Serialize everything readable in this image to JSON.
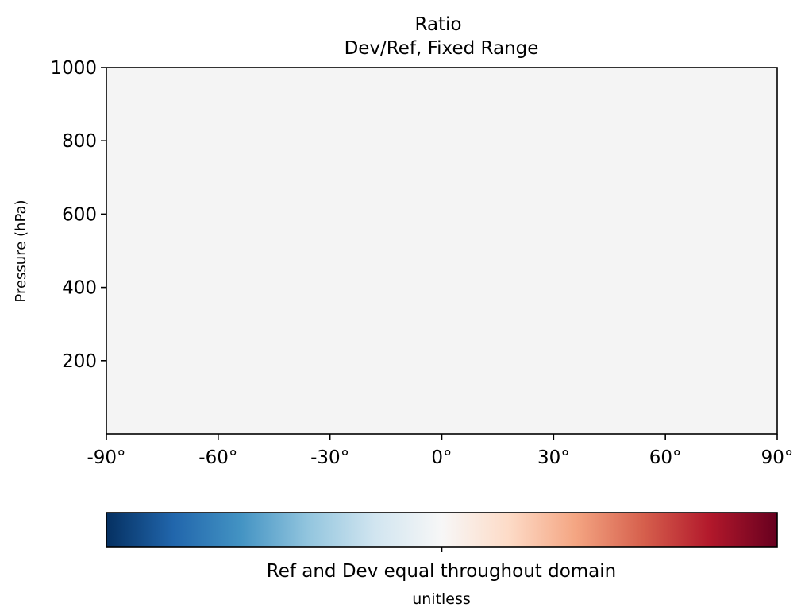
{
  "chart_data": {
    "type": "heatmap",
    "title": "Ratio",
    "subtitle": "Dev/Ref, Fixed Range",
    "xlabel": "",
    "ylabel": "Pressure (hPa)",
    "xlim": [
      -90,
      90
    ],
    "ylim": [
      1000,
      0
    ],
    "y_scale": "linear",
    "x_ticks": [
      -90,
      -60,
      -30,
      0,
      30,
      60,
      90
    ],
    "x_tick_labels": [
      "-90°",
      "-60°",
      "-30°",
      "0°",
      "30°",
      "60°",
      "90°"
    ],
    "y_ticks": [
      200,
      400,
      600,
      800,
      1000
    ],
    "y_tick_labels": [
      "200",
      "400",
      "600",
      "800",
      "1000"
    ],
    "field_value": 1,
    "field_color": "#f4f4f4",
    "grid": false,
    "colorbar": {
      "colormap": "RdBu_r",
      "orientation": "horizontal",
      "position": "bottom",
      "tick_value": 1,
      "label": "Ref and Dev equal throughout domain",
      "units": "unitless",
      "colors": [
        "#053061",
        "#2166ac",
        "#4393c3",
        "#92c5de",
        "#d1e5f0",
        "#f7f7f7",
        "#fddbc7",
        "#f4a582",
        "#d6604d",
        "#b2182b",
        "#67001f"
      ]
    }
  }
}
